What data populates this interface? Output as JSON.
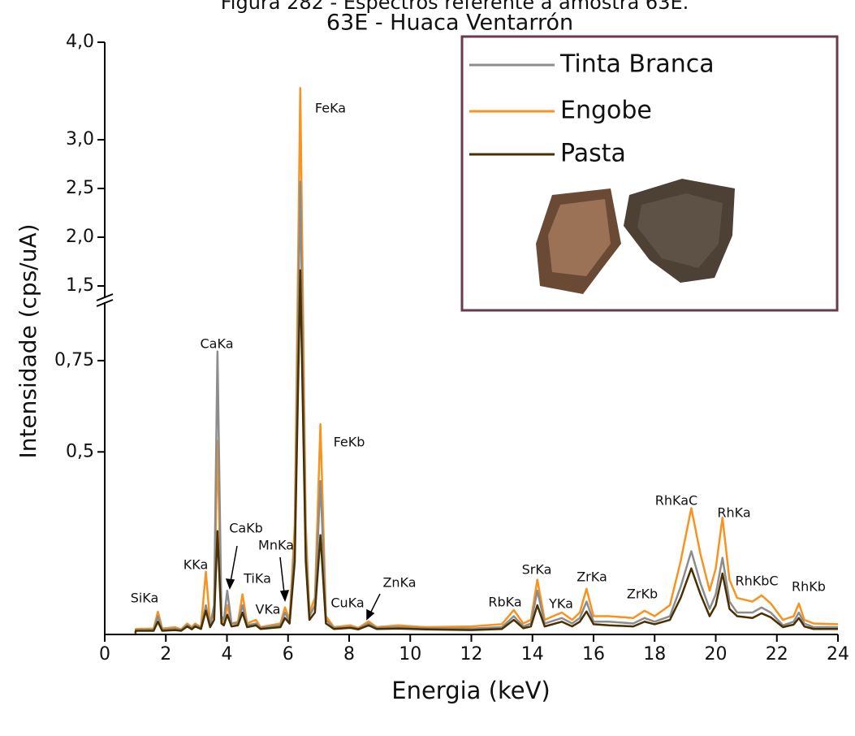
{
  "chart_data": {
    "type": "line",
    "title": "Figura 282 - Espectros referente à amostra 63E.",
    "subtitle": "63E - Huaca Ventarrón",
    "xlabel": "Energia (keV)",
    "ylabel": "Intensidade (cps/uA)",
    "xlim": [
      0,
      24
    ],
    "xticks": [
      0,
      2,
      4,
      6,
      8,
      10,
      12,
      14,
      16,
      18,
      20,
      22,
      24
    ],
    "ylim": [
      0,
      4
    ],
    "ybreak": [
      0.91,
      1.375
    ],
    "yticks": [
      {
        "value": 0.5,
        "label": "0,5"
      },
      {
        "value": 0.75,
        "label": "0,75"
      },
      {
        "value": 1.5,
        "label": "1,5"
      },
      {
        "value": 2,
        "label": "2,0"
      },
      {
        "value": 2.5,
        "label": "2,5"
      },
      {
        "value": 3,
        "label": "3,0"
      },
      {
        "value": 4,
        "label": "4,0"
      }
    ],
    "x": [
      1.0,
      1.02,
      1.6,
      1.74,
      1.88,
      2.3,
      2.5,
      2.7,
      2.85,
      2.96,
      3.15,
      3.31,
      3.45,
      3.58,
      3.69,
      3.82,
      3.9,
      4.01,
      4.15,
      4.36,
      4.51,
      4.66,
      4.95,
      5.1,
      5.75,
      5.9,
      6.05,
      6.22,
      6.4,
      6.58,
      6.7,
      6.88,
      7.06,
      7.24,
      7.5,
      8.04,
      8.3,
      8.64,
      8.9,
      9.6,
      10.5,
      12.0,
      13.0,
      13.39,
      13.7,
      13.95,
      14.16,
      14.4,
      14.96,
      15.3,
      15.55,
      15.77,
      16.0,
      16.5,
      17.3,
      17.67,
      18.0,
      18.5,
      18.85,
      19.2,
      19.5,
      19.8,
      20.0,
      20.22,
      20.45,
      20.7,
      21.2,
      21.5,
      21.8,
      22.2,
      22.55,
      22.72,
      22.9,
      23.2,
      24.0
    ],
    "series": [
      {
        "name": "Tinta Branca",
        "color": "#8c8c8c",
        "values": [
          0.003,
          0.012,
          0.013,
          0.05,
          0.013,
          0.016,
          0.012,
          0.026,
          0.017,
          0.026,
          0.018,
          0.08,
          0.025,
          0.08,
          0.775,
          0.05,
          0.04,
          0.12,
          0.03,
          0.03,
          0.08,
          0.025,
          0.03,
          0.018,
          0.025,
          0.06,
          0.035,
          0.25,
          2.57,
          0.25,
          0.05,
          0.08,
          0.42,
          0.04,
          0.018,
          0.02,
          0.016,
          0.03,
          0.018,
          0.02,
          0.017,
          0.016,
          0.02,
          0.05,
          0.022,
          0.03,
          0.12,
          0.03,
          0.045,
          0.03,
          0.045,
          0.09,
          0.035,
          0.035,
          0.03,
          0.045,
          0.035,
          0.05,
          0.13,
          0.228,
          0.14,
          0.07,
          0.11,
          0.21,
          0.09,
          0.06,
          0.06,
          0.074,
          0.06,
          0.025,
          0.035,
          0.06,
          0.03,
          0.02,
          0.02
        ]
      },
      {
        "name": "Engobe",
        "color": "#f7931e",
        "values": [
          0.003,
          0.015,
          0.016,
          0.0625,
          0.016,
          0.02,
          0.014,
          0.03,
          0.02,
          0.03,
          0.02,
          0.172,
          0.03,
          0.06,
          0.53,
          0.04,
          0.03,
          0.08,
          0.03,
          0.035,
          0.11,
          0.03,
          0.04,
          0.02,
          0.03,
          0.074,
          0.04,
          0.3,
          3.53,
          0.3,
          0.06,
          0.1,
          0.576,
          0.05,
          0.02,
          0.025,
          0.018,
          0.036,
          0.02,
          0.025,
          0.02,
          0.022,
          0.028,
          0.067,
          0.03,
          0.04,
          0.15,
          0.04,
          0.06,
          0.04,
          0.06,
          0.125,
          0.05,
          0.05,
          0.045,
          0.065,
          0.05,
          0.08,
          0.2,
          0.346,
          0.22,
          0.12,
          0.18,
          0.32,
          0.15,
          0.1,
          0.09,
          0.107,
          0.085,
          0.04,
          0.05,
          0.085,
          0.04,
          0.03,
          0.028
        ]
      },
      {
        "name": "Pasta",
        "color": "#4a3000",
        "values": [
          0.003,
          0.01,
          0.01,
          0.035,
          0.01,
          0.012,
          0.01,
          0.022,
          0.014,
          0.022,
          0.015,
          0.065,
          0.02,
          0.04,
          0.283,
          0.03,
          0.025,
          0.054,
          0.022,
          0.025,
          0.06,
          0.02,
          0.025,
          0.015,
          0.02,
          0.045,
          0.03,
          0.2,
          1.66,
          0.2,
          0.04,
          0.06,
          0.272,
          0.03,
          0.015,
          0.018,
          0.014,
          0.025,
          0.015,
          0.016,
          0.014,
          0.012,
          0.015,
          0.04,
          0.017,
          0.022,
          0.08,
          0.022,
          0.035,
          0.022,
          0.035,
          0.063,
          0.028,
          0.025,
          0.022,
          0.035,
          0.028,
          0.04,
          0.1,
          0.181,
          0.11,
          0.05,
          0.08,
          0.167,
          0.07,
          0.05,
          0.045,
          0.058,
          0.047,
          0.02,
          0.027,
          0.045,
          0.022,
          0.015,
          0.015
        ]
      }
    ],
    "annotations": [
      "SiKa",
      "KKa",
      "CaKa",
      "CaKb",
      "TiKa",
      "MnKa",
      "VKa",
      "FeKa",
      "FeKb",
      "CuKa",
      "ZnKa",
      "RbKa",
      "SrKa",
      "YKa",
      "ZrKa",
      "ZrKb",
      "RhKaC",
      "RhKa",
      "RhKbC",
      "RhKb"
    ]
  }
}
